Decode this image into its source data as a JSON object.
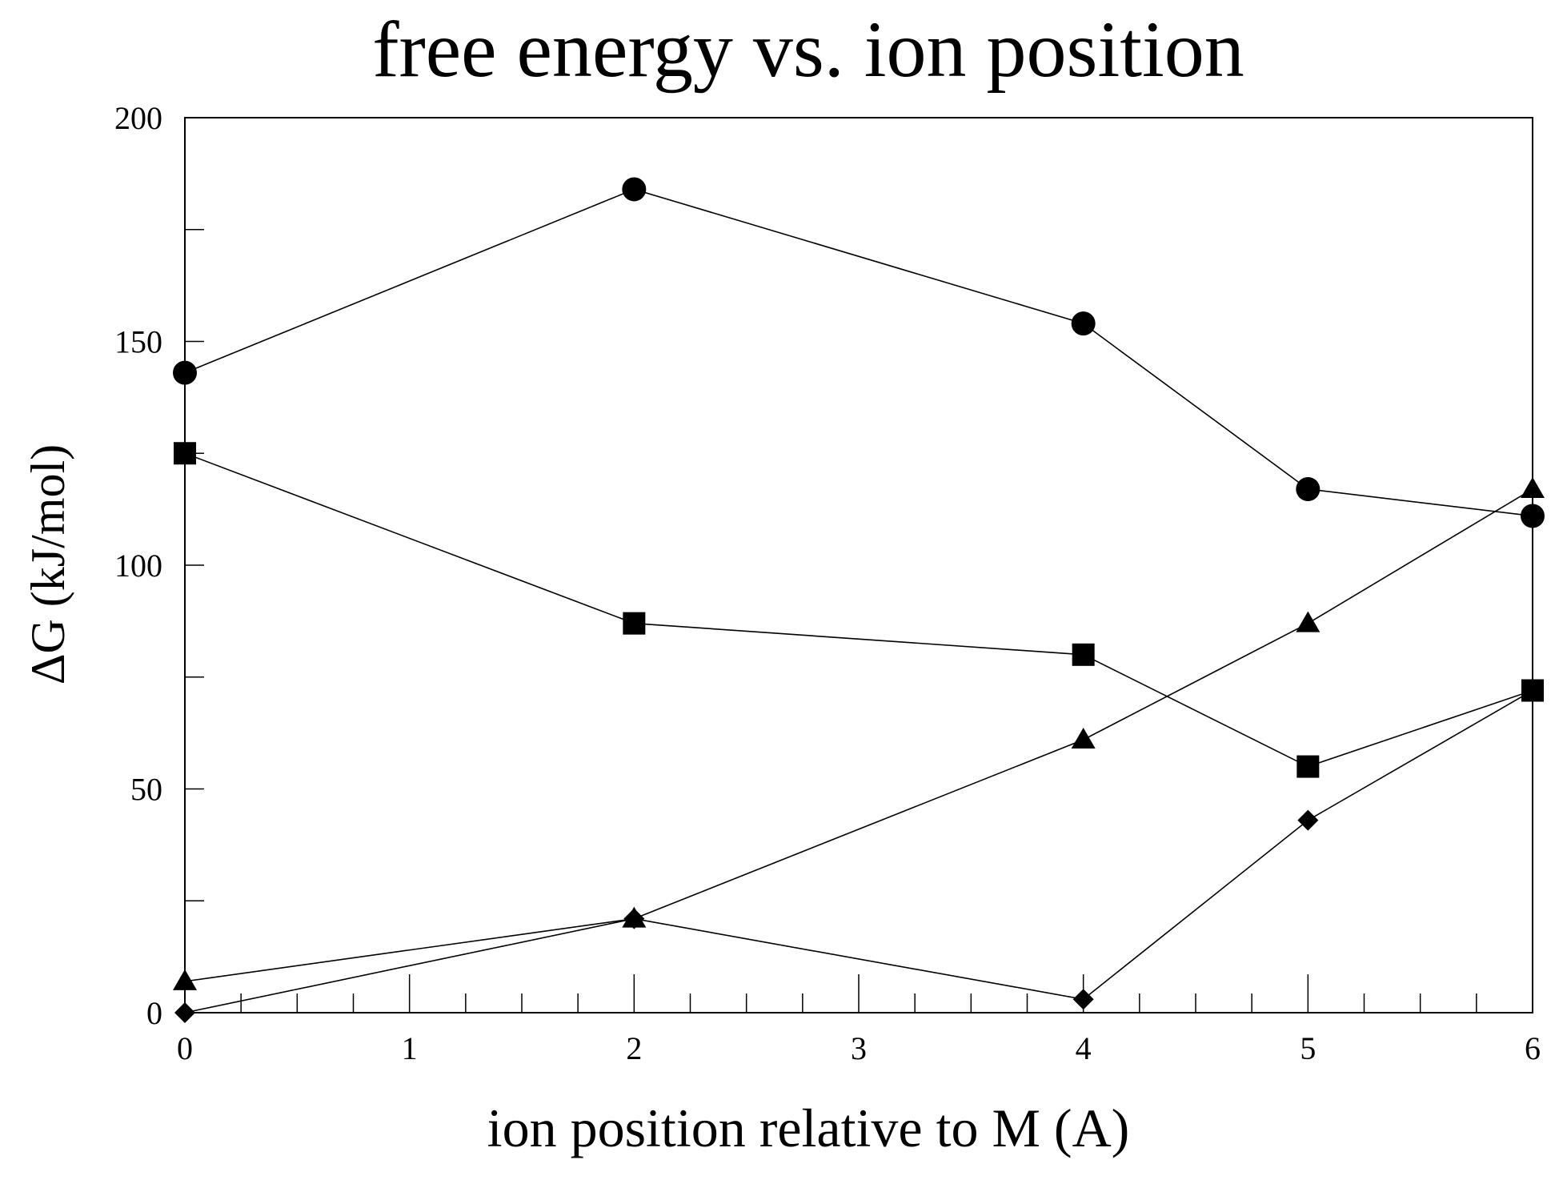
{
  "chart_data": {
    "type": "line",
    "title": "free energy vs. ion position",
    "xlabel": "ion position relative to M (A)",
    "ylabel": "ΔG (kJ/mol)",
    "x_tick_labels": [
      "0",
      "1",
      "2",
      "3",
      "4",
      "5",
      "6"
    ],
    "y_tick_labels": [
      "0",
      "50",
      "100",
      "150",
      "200"
    ],
    "ylim": [
      0,
      200
    ],
    "grid": false,
    "legend": "none",
    "series": [
      {
        "name": "circles",
        "marker": "circle",
        "x": [
          "0",
          "2",
          "4",
          "5",
          "6"
        ],
        "values": [
          143,
          184,
          154,
          117,
          111
        ]
      },
      {
        "name": "squares",
        "marker": "square",
        "x": [
          "0",
          "2",
          "4",
          "5",
          "6"
        ],
        "values": [
          125,
          87,
          80,
          55,
          72
        ]
      },
      {
        "name": "triangles",
        "marker": "triangle",
        "x": [
          "0",
          "2",
          "4",
          "5",
          "6"
        ],
        "values": [
          7,
          21,
          61,
          87,
          117
        ]
      },
      {
        "name": "diamonds",
        "marker": "diamond",
        "x": [
          "0",
          "2",
          "4",
          "5",
          "6"
        ],
        "values": [
          0,
          21,
          3,
          43,
          72
        ]
      }
    ]
  }
}
